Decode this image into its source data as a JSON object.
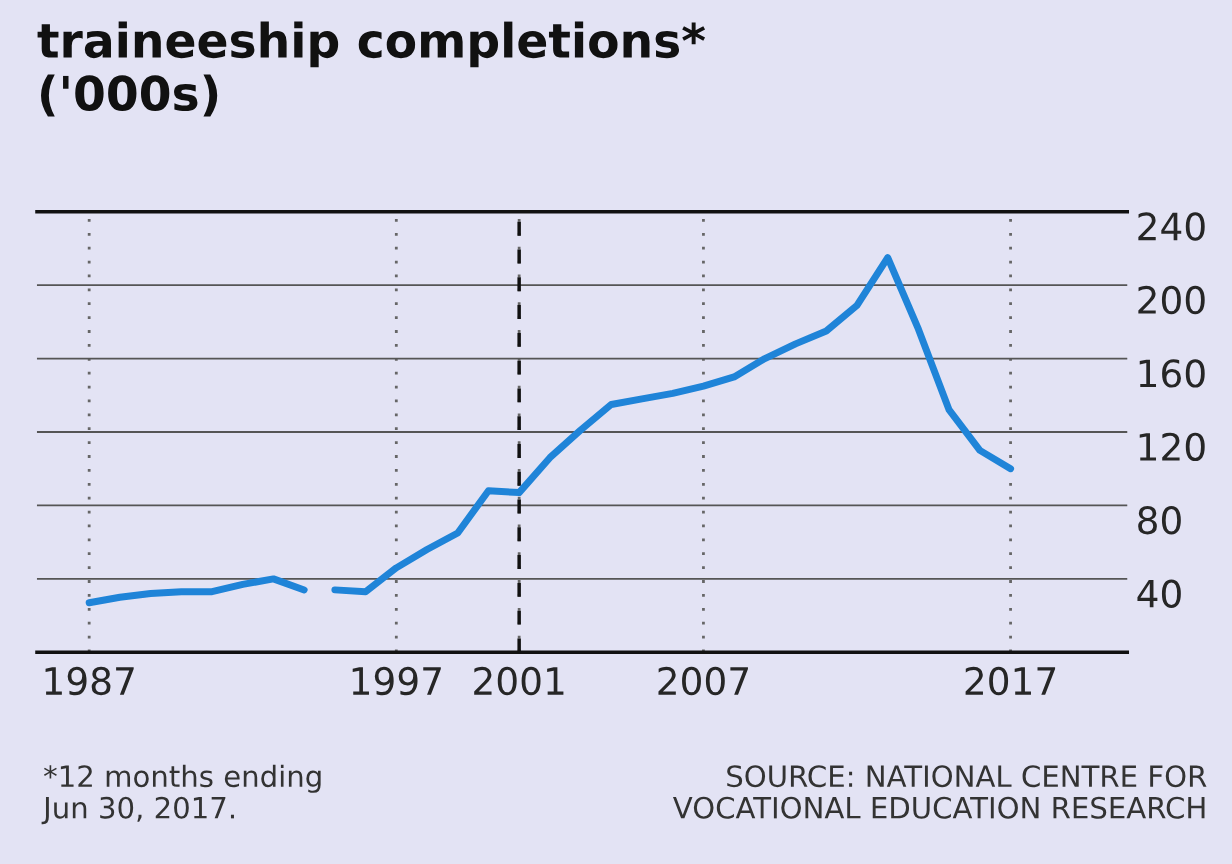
{
  "chart_data": {
    "type": "line",
    "title": "traineeship completions*\n('000s)",
    "x": [
      1987,
      1988,
      1989,
      1990,
      1991,
      1992,
      1993,
      1994,
      1994.5,
      1995,
      1996,
      1997,
      1998,
      1999,
      2000,
      2001,
      2002,
      2003,
      2004,
      2005,
      2006,
      2007,
      2008,
      2009,
      2010,
      2011,
      2012,
      2013,
      2014,
      2015,
      2016,
      2017
    ],
    "series": [
      {
        "color": "#1f84d8",
        "values": [
          27,
          30,
          32,
          33,
          33,
          37,
          40,
          34,
          null,
          34,
          33,
          46,
          56,
          65,
          88,
          87,
          106,
          121,
          135,
          138,
          141,
          145,
          150,
          160,
          168,
          175,
          189,
          215,
          176,
          132,
          110,
          100
        ]
      }
    ],
    "xlim": [
      1985.3,
      2020.8
    ],
    "xticks": [
      1987,
      1997,
      2001,
      2007,
      2017
    ],
    "ylim": [
      0,
      240
    ],
    "yticks": [
      40,
      80,
      120,
      160,
      200,
      240
    ],
    "grid": true,
    "marker": "none",
    "line_style": "solid",
    "ref_lines": [
      {
        "axis": "x",
        "value": 2001,
        "line_style": "dashed",
        "color": "#111111"
      }
    ],
    "annotations": [
      "*12 months ending\nJun 30, 2017.",
      "SOURCE: NATIONAL CENTRE FOR\nVOCATIONAL EDUCATION RESEARCH"
    ]
  }
}
